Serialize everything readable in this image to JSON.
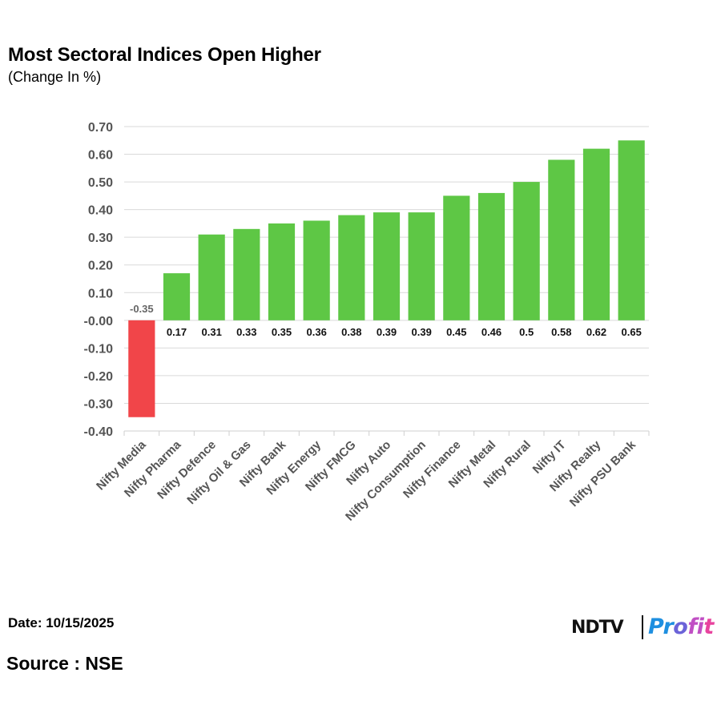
{
  "header": {
    "title": "Most Sectoral Indices Open Higher",
    "subtitle": "(Change In %)"
  },
  "footer": {
    "date": "Date: 10/15/2025",
    "source": "Source : NSE"
  },
  "logo": {
    "brand": "NDTV",
    "product": "Profit",
    "colors": [
      "#1e8fe0",
      "#6b63d8",
      "#c04fc4",
      "#e8439e"
    ]
  },
  "chart_data": {
    "type": "bar",
    "title": "Most Sectoral Indices Open Higher",
    "subtitle": "(Change In %)",
    "xlabel": "",
    "ylabel": "",
    "categories": [
      "Nifty Media",
      "Nifty Pharma",
      "Nifty Defence",
      "Nifty Oil & Gas",
      "Nifty Bank",
      "Nifty Energy",
      "Nifty FMCG",
      "Nifty Auto",
      "Nifty Consumption",
      "Nifty Finance",
      "Nifty Metal",
      "Nifty Rural",
      "Nifty IT",
      "Nifty Realty",
      "Nifty PSU Bank"
    ],
    "values": [
      -0.35,
      0.17,
      0.31,
      0.33,
      0.35,
      0.36,
      0.38,
      0.39,
      0.39,
      0.45,
      0.46,
      0.5,
      0.58,
      0.62,
      0.65
    ],
    "value_labels": [
      "-0.35",
      "0.17",
      "0.31",
      "0.33",
      "0.35",
      "0.36",
      "0.38",
      "0.39",
      "0.39",
      "0.45",
      "0.46",
      "0.5",
      "0.58",
      "0.62",
      "0.65"
    ],
    "ylim": [
      -0.4,
      0.7
    ],
    "yticks": [
      "0.70",
      "0.60",
      "0.50",
      "0.40",
      "0.30",
      "0.20",
      "0.10",
      "-0.00",
      "-0.10",
      "-0.20",
      "-0.30",
      "-0.40"
    ],
    "ytick_values": [
      0.7,
      0.6,
      0.5,
      0.4,
      0.3,
      0.2,
      0.1,
      0,
      -0.1,
      -0.2,
      -0.3,
      -0.4
    ],
    "grid": true,
    "legend": "none",
    "colors": {
      "positive": "#5ec745",
      "negative": "#f14549",
      "grid": "#d9d9d9",
      "tick_text": "#555555"
    }
  }
}
